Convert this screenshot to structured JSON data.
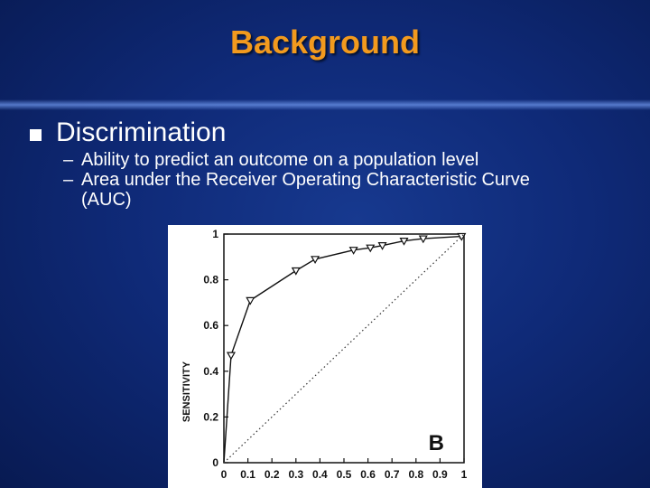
{
  "slide": {
    "title": "Background",
    "bullet": "Discrimination",
    "subbullets": [
      "Ability to predict an outcome on a population level",
      "Area under the Receiver Operating Characteristic Curve",
      "(AUC)"
    ]
  },
  "colors": {
    "title": "#f29a1e",
    "background": "#0f2a78",
    "text": "#ffffff"
  },
  "chart_data": {
    "type": "line",
    "ylabel": "SENSITIVITY",
    "xlabel": "",
    "panel_label": "B",
    "xlim": [
      0,
      1
    ],
    "ylim": [
      0,
      1
    ],
    "x_ticks": [
      "0",
      "0.1",
      "0.2",
      "0.3",
      "0.4",
      "0.5",
      "0.6",
      "0.7",
      "0.8",
      "0.9",
      "1"
    ],
    "y_ticks": [
      "0",
      "0.2",
      "0.4",
      "0.6",
      "0.8",
      "1"
    ],
    "series": [
      {
        "style": "solid-triangle-markers",
        "x": [
          0,
          0.03,
          0.11,
          0.3,
          0.38,
          0.54,
          0.61,
          0.66,
          0.75,
          0.83,
          0.99
        ],
        "y": [
          0,
          0.47,
          0.71,
          0.84,
          0.89,
          0.93,
          0.94,
          0.95,
          0.97,
          0.98,
          0.99
        ]
      },
      {
        "style": "dotted-reference",
        "x": [
          0,
          1
        ],
        "y": [
          0,
          1
        ]
      }
    ]
  }
}
